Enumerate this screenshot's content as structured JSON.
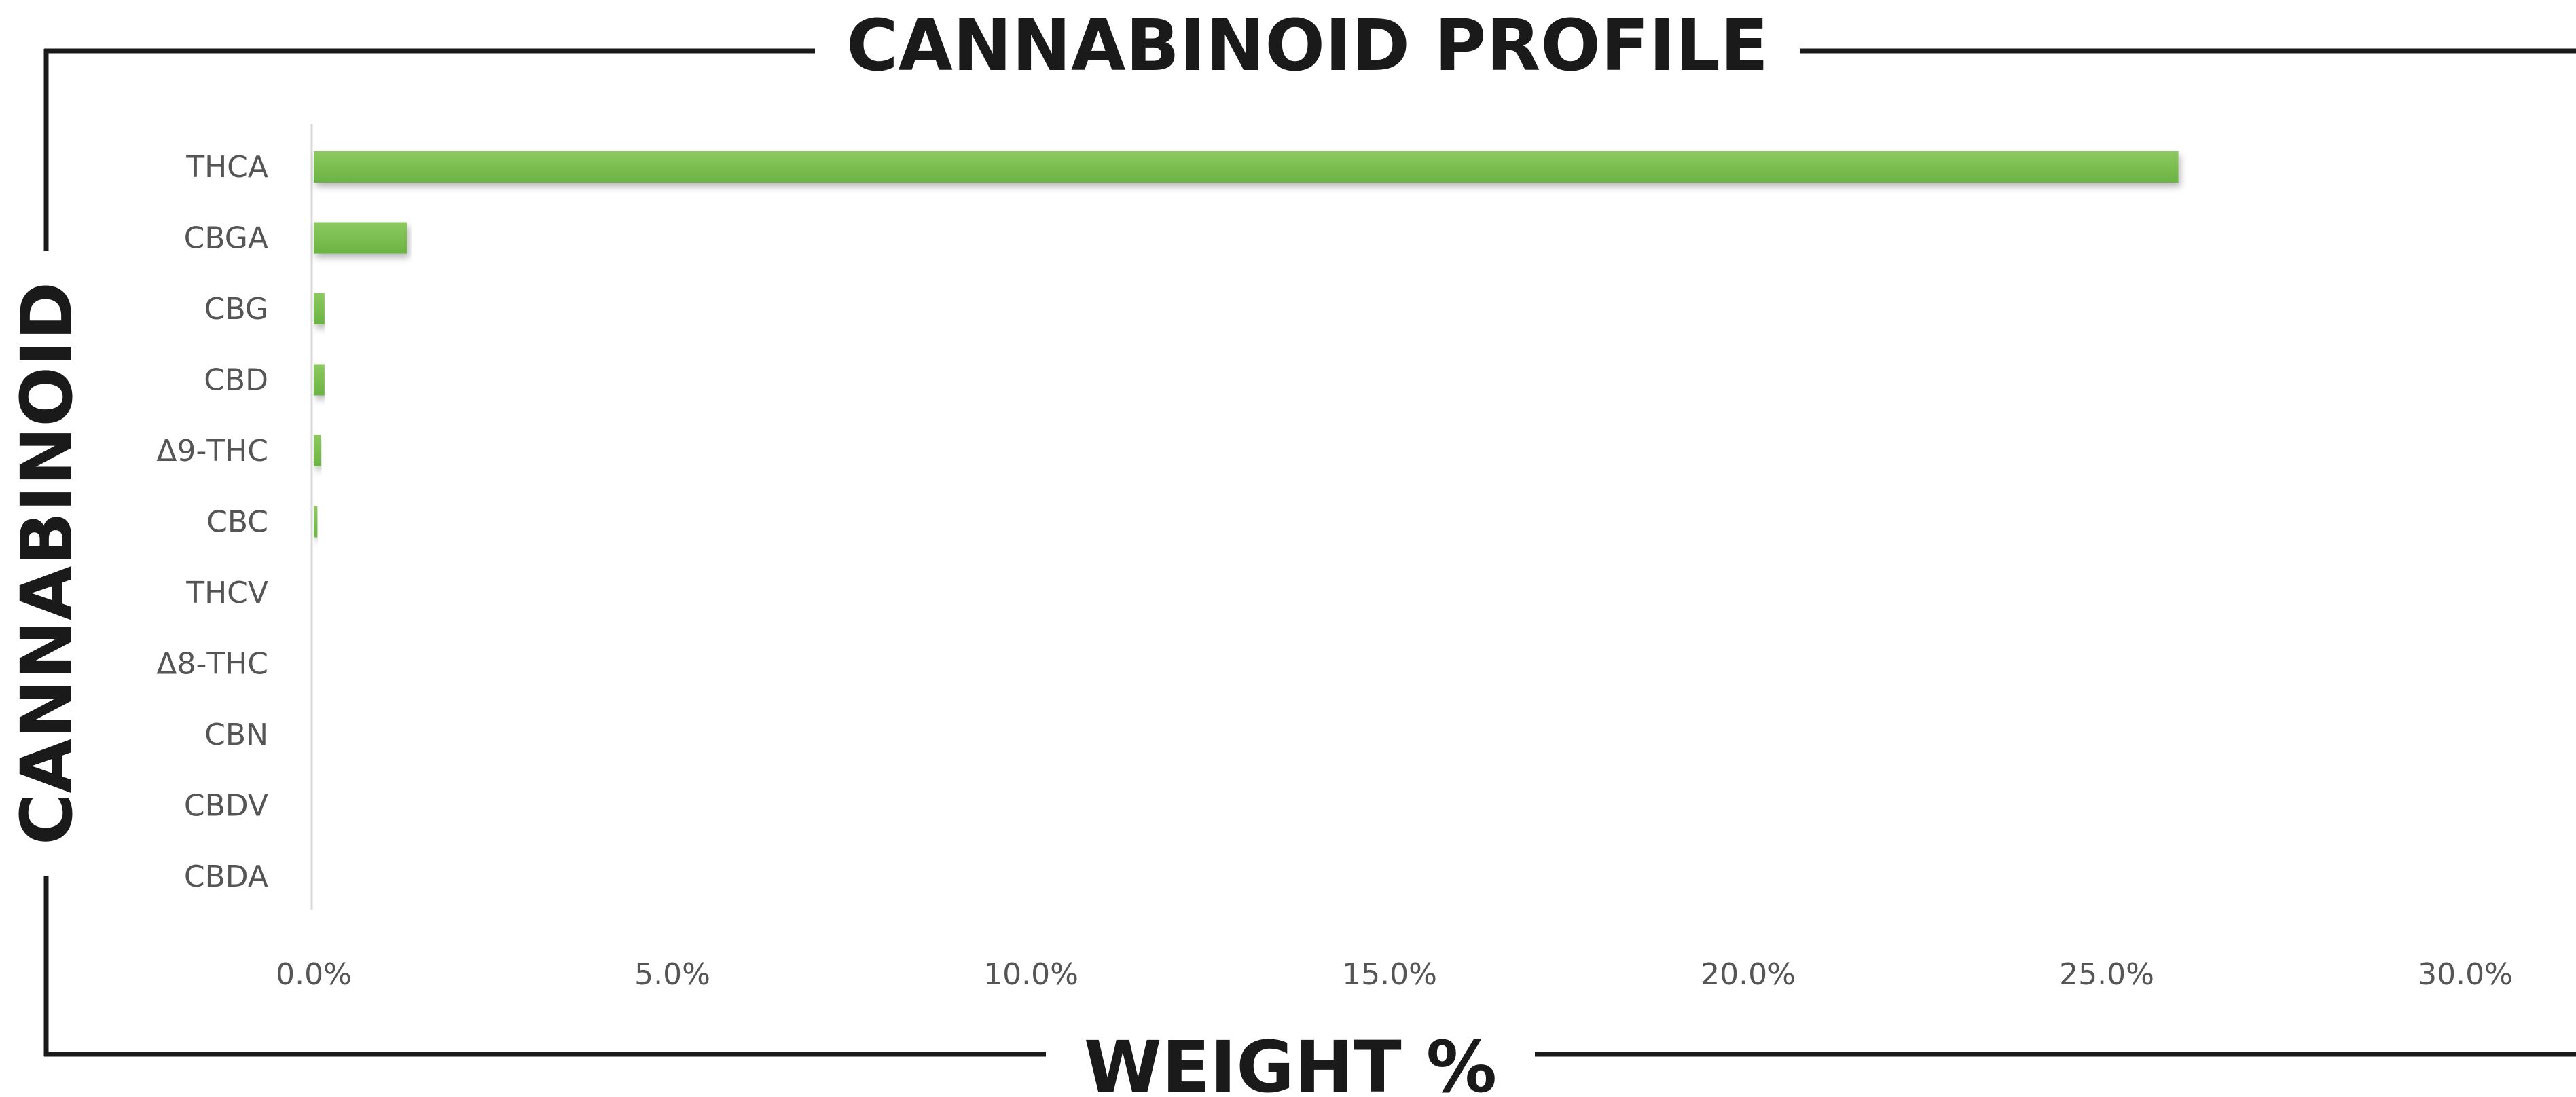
{
  "chart_data": {
    "type": "bar",
    "orientation": "horizontal",
    "title": "CANNABINOID PROFILE",
    "xlabel": "WEIGHT %",
    "ylabel": "CANNABINOID",
    "categories": [
      "THCA",
      "CBGA",
      "CBG",
      "CBD",
      "Δ9-THC",
      "CBC",
      "THCV",
      "Δ8-THC",
      "CBN",
      "CBDV",
      "CBDA"
    ],
    "values": [
      26.0,
      1.3,
      0.15,
      0.15,
      0.1,
      0.05,
      0,
      0,
      0,
      0,
      0
    ],
    "xlim": [
      0,
      30
    ],
    "xticks": [
      "0.0%",
      "5.0%",
      "10.0%",
      "15.0%",
      "20.0%",
      "25.0%",
      "30.0%"
    ],
    "xtick_values": [
      0,
      5,
      10,
      15,
      20,
      25,
      30
    ],
    "grid": false,
    "legend": "none",
    "bar_color": "#6bb344",
    "bar_highlight": "#8cc95f"
  }
}
